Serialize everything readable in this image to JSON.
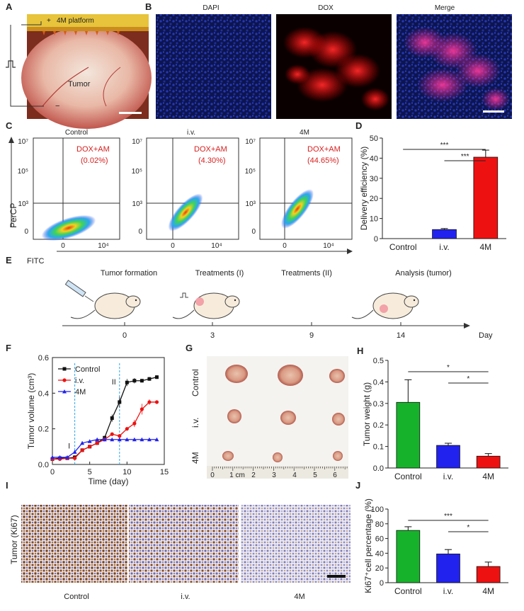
{
  "panel_labels": [
    "A",
    "B",
    "C",
    "D",
    "E",
    "F",
    "G",
    "H",
    "I",
    "J"
  ],
  "panel_a": {
    "platform_label": "4M platform",
    "tumor_label": "Tumor",
    "plus": "+",
    "minus": "−"
  },
  "panel_b": {
    "titles": [
      "DAPI",
      "DOX",
      "Merge"
    ]
  },
  "panel_c": {
    "xlabel": "FITC",
    "ylabel": "PerCP",
    "y_ticks": [
      "10⁷",
      "10⁵",
      "10³",
      "0"
    ],
    "x_ticks": [
      "0",
      "10⁴"
    ],
    "plots": [
      {
        "title": "Control",
        "gate": "DOX+AM",
        "pct": "(0.02%)"
      },
      {
        "title": "i.v.",
        "gate": "DOX+AM",
        "pct": "(4.30%)"
      },
      {
        "title": "4M",
        "gate": "DOX+AM",
        "pct": "(44.65%)"
      }
    ]
  },
  "panel_e": {
    "steps": [
      "Tumor formation",
      "Treatments (I)",
      "Treatments (II)",
      "Analysis (tumor)"
    ],
    "days": [
      "0",
      "3",
      "9",
      "14"
    ],
    "axis_label": "Day"
  },
  "panel_g": {
    "rows": [
      "Control",
      "i.v.",
      "4M"
    ],
    "ruler": [
      "0",
      "1 cm",
      "2",
      "3",
      "4",
      "5",
      "6"
    ]
  },
  "panel_i": {
    "ylabel": "Tumor (Ki67)",
    "labels": [
      "Control",
      "i.v.",
      "4M"
    ]
  },
  "colors": {
    "control": "#17b22b",
    "iv": "#2222ee",
    "m4": "#ee1111",
    "black": "#111111"
  },
  "chart_data": [
    {
      "id": "D",
      "type": "bar",
      "categories": [
        "Control",
        "i.v.",
        "4M"
      ],
      "values": [
        0,
        4.5,
        40.5
      ],
      "errors": [
        0,
        0.5,
        3.5
      ],
      "colors": [
        "#17b22b",
        "#2222ee",
        "#ee1111"
      ],
      "ylabel": "Delivery efficiency (%)",
      "ylim": [
        0,
        50
      ],
      "yticks": [
        0,
        10,
        20,
        30,
        40,
        50
      ],
      "significance": [
        {
          "from": "Control",
          "to": "4M",
          "label": "***"
        },
        {
          "from": "i.v.",
          "to": "4M",
          "label": "***"
        }
      ]
    },
    {
      "id": "F",
      "type": "line",
      "xlabel": "Time (day)",
      "ylabel": "Tumor volume (cm³)",
      "xlim": [
        0,
        15
      ],
      "ylim": [
        0,
        0.6
      ],
      "xticks": [
        0,
        5,
        10,
        15
      ],
      "yticks": [
        0.0,
        0.2,
        0.4,
        0.6
      ],
      "x": [
        0,
        1,
        2,
        3,
        4,
        5,
        6,
        7,
        8,
        9,
        10,
        11,
        12,
        13,
        14
      ],
      "series": [
        {
          "name": "Control",
          "marker": "square",
          "color": "#111111",
          "values": [
            0.03,
            0.035,
            0.035,
            0.04,
            0.08,
            0.1,
            0.12,
            0.15,
            0.26,
            0.35,
            0.46,
            0.47,
            0.47,
            0.48,
            0.49
          ],
          "errors": [
            0.005,
            0.005,
            0.005,
            0.006,
            0.01,
            0.01,
            0.01,
            0.01,
            0.02,
            0.03,
            0.02,
            0.015,
            0.01,
            0.01,
            0.01
          ]
        },
        {
          "name": "i.v.",
          "marker": "circle",
          "color": "#ee1111",
          "values": [
            0.03,
            0.03,
            0.035,
            0.035,
            0.08,
            0.1,
            0.12,
            0.14,
            0.17,
            0.16,
            0.2,
            0.23,
            0.31,
            0.35,
            0.35
          ],
          "errors": [
            0.005,
            0.005,
            0.005,
            0.005,
            0.01,
            0.01,
            0.01,
            0.01,
            0.01,
            0.01,
            0.01,
            0.02,
            0.03,
            0.015,
            0.01
          ]
        },
        {
          "name": "4M",
          "marker": "triangle",
          "color": "#2222ee",
          "values": [
            0.04,
            0.04,
            0.04,
            0.07,
            0.12,
            0.13,
            0.14,
            0.14,
            0.14,
            0.14,
            0.14,
            0.14,
            0.14,
            0.14,
            0.14
          ],
          "errors": [
            0.005,
            0.005,
            0.005,
            0.01,
            0.01,
            0.005,
            0.005,
            0.005,
            0.005,
            0.005,
            0.005,
            0.005,
            0.005,
            0.005,
            0.005
          ]
        }
      ],
      "annotations": [
        {
          "x": 3,
          "label": "I"
        },
        {
          "x": 9,
          "label": "II"
        }
      ]
    },
    {
      "id": "H",
      "type": "bar",
      "categories": [
        "Control",
        "i.v.",
        "4M"
      ],
      "values": [
        0.305,
        0.105,
        0.055
      ],
      "errors": [
        0.105,
        0.01,
        0.012
      ],
      "colors": [
        "#17b22b",
        "#2222ee",
        "#ee1111"
      ],
      "ylabel": "Tumor weight (g)",
      "ylim": [
        0,
        0.5
      ],
      "yticks": [
        0.0,
        0.1,
        0.2,
        0.3,
        0.4,
        0.5
      ],
      "significance": [
        {
          "from": "Control",
          "to": "4M",
          "label": "*"
        },
        {
          "from": "i.v.",
          "to": "4M",
          "label": "*"
        }
      ]
    },
    {
      "id": "J",
      "type": "bar",
      "categories": [
        "Control",
        "i.v.",
        "4M"
      ],
      "values": [
        71,
        39,
        22
      ],
      "errors": [
        5,
        6,
        6
      ],
      "colors": [
        "#17b22b",
        "#2222ee",
        "#ee1111"
      ],
      "ylabel": "Ki67⁺cell percentage (%)",
      "ylim": [
        0,
        100
      ],
      "yticks": [
        0,
        20,
        40,
        60,
        80,
        100
      ],
      "significance": [
        {
          "from": "Control",
          "to": "4M",
          "label": "***"
        },
        {
          "from": "i.v.",
          "to": "4M",
          "label": "*"
        }
      ]
    }
  ]
}
